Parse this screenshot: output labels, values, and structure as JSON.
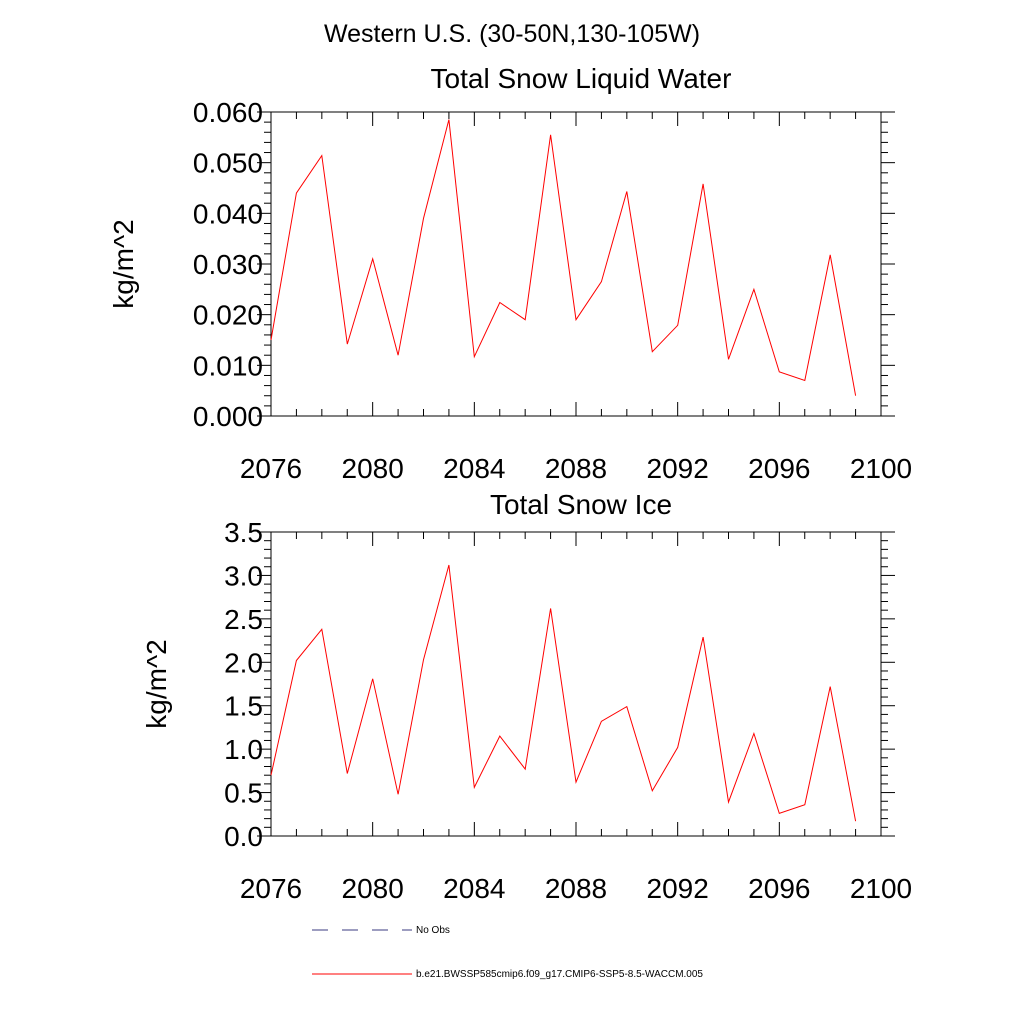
{
  "figure": {
    "title": "Western U.S. (30-50N,130-105W)"
  },
  "chart_data": [
    {
      "type": "line",
      "title": "Total Snow Liquid Water",
      "xlabel": "",
      "ylabel": "kg/m^2",
      "xlim": [
        2076,
        2100
      ],
      "ylim": [
        0.0,
        0.06
      ],
      "xticks": [
        "2076",
        "2080",
        "2084",
        "2088",
        "2092",
        "2096",
        "2100"
      ],
      "yticks": [
        "0.000",
        "0.010",
        "0.020",
        "0.030",
        "0.040",
        "0.050",
        "0.060"
      ],
      "grid": false,
      "x": [
        2076,
        2077,
        2078,
        2079,
        2080,
        2081,
        2082,
        2083,
        2084,
        2085,
        2086,
        2087,
        2088,
        2089,
        2090,
        2091,
        2092,
        2093,
        2094,
        2095,
        2096,
        2097,
        2098,
        2099
      ],
      "series": [
        {
          "name": "b.e21.BWSSP585cmip6.f09_g17.CMIP6-SSP5-8.5-WACCM.005",
          "color": "#ff0000",
          "values": [
            0.015,
            0.044,
            0.0514,
            0.0142,
            0.031,
            0.012,
            0.039,
            0.0585,
            0.0117,
            0.0224,
            0.019,
            0.0555,
            0.019,
            0.0265,
            0.0443,
            0.0127,
            0.0179,
            0.0458,
            0.0112,
            0.025,
            0.0087,
            0.007,
            0.0318,
            0.004
          ]
        }
      ]
    },
    {
      "type": "line",
      "title": "Total Snow Ice",
      "xlabel": "",
      "ylabel": "kg/m^2",
      "xlim": [
        2076,
        2100
      ],
      "ylim": [
        0.0,
        3.5
      ],
      "xticks": [
        "2076",
        "2080",
        "2084",
        "2088",
        "2092",
        "2096",
        "2100"
      ],
      "yticks": [
        "0.0",
        "0.5",
        "1.0",
        "1.5",
        "2.0",
        "2.5",
        "3.0",
        "3.5"
      ],
      "grid": false,
      "x": [
        2076,
        2077,
        2078,
        2079,
        2080,
        2081,
        2082,
        2083,
        2084,
        2085,
        2086,
        2087,
        2088,
        2089,
        2090,
        2091,
        2092,
        2093,
        2094,
        2095,
        2096,
        2097,
        2098,
        2099
      ],
      "series": [
        {
          "name": "b.e21.BWSSP585cmip6.f09_g17.CMIP6-SSP5-8.5-WACCM.005",
          "color": "#ff0000",
          "values": [
            0.7,
            2.02,
            2.38,
            0.72,
            1.81,
            0.48,
            2.03,
            3.12,
            0.56,
            1.15,
            0.77,
            2.62,
            0.62,
            1.32,
            1.49,
            0.52,
            1.02,
            2.29,
            0.39,
            1.18,
            0.26,
            0.36,
            1.72,
            0.17
          ]
        }
      ]
    }
  ],
  "legend": {
    "items": [
      {
        "label": "No Obs",
        "color": "#3b3b80",
        "dash": true
      },
      {
        "label": "b.e21.BWSSP585cmip6.f09_g17.CMIP6-SSP5-8.5-WACCM.005",
        "color": "#ff0000",
        "dash": false
      }
    ]
  }
}
